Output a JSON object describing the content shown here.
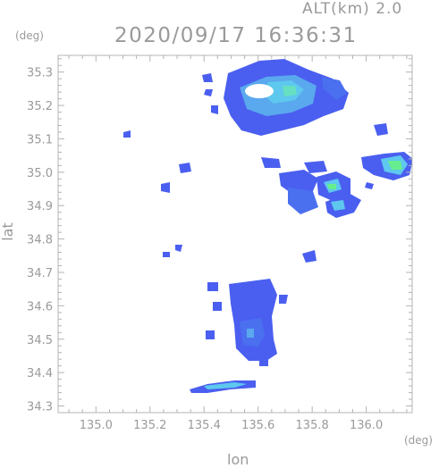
{
  "header": {
    "altitude": "ALT(km) 2.0",
    "timestamp": "2020/09/17 16:36:31"
  },
  "axes": {
    "y_unit": "(deg)",
    "x_unit": "(deg)",
    "x_label": "lon",
    "y_label": "lat",
    "x_ticks": [
      "135.0",
      "135.2",
      "135.4",
      "135.6",
      "135.8",
      "136.0"
    ],
    "y_ticks": [
      "35.3",
      "35.2",
      "35.1",
      "35.0",
      "34.9",
      "34.8",
      "34.7",
      "34.6",
      "34.5",
      "34.4",
      "34.3"
    ],
    "x_range": [
      134.86,
      136.17
    ],
    "y_range": [
      34.28,
      35.35
    ]
  },
  "colors": {
    "frame": "#b4b4b4",
    "echo_low": "#4a5ff0",
    "echo_mid": "#5ec8ee",
    "echo_high": "#66ee8e"
  }
}
